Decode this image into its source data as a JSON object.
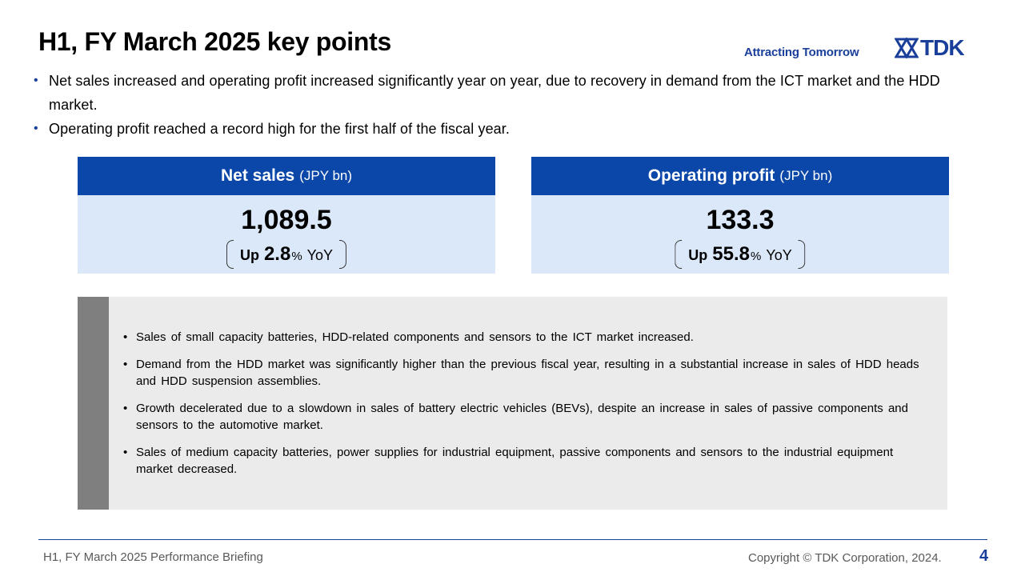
{
  "header": {
    "title": "H1, FY March 2025 key points",
    "tagline": "Attracting Tomorrow",
    "logo_text": "TDK"
  },
  "bullets": [
    "Net sales increased and operating profit increased significantly year on year, due to recovery in demand from the ICT market and the HDD market.",
    "Operating profit reached a record high for the first half of the fiscal year."
  ],
  "kpis": [
    {
      "label": "Net sales",
      "unit": "(JPY bn)",
      "value": "1,089.5",
      "up_label": "Up",
      "change": "2.8",
      "pct": "%",
      "yoy": "YoY"
    },
    {
      "label": "Operating profit",
      "unit": "(JPY bn)",
      "value": "133.3",
      "up_label": "Up",
      "change": "55.8",
      "pct": "%",
      "yoy": "YoY"
    }
  ],
  "details": [
    "Sales of small capacity batteries, HDD-related components and sensors to the ICT market increased.",
    "Demand from the HDD market was significantly higher than the previous fiscal year, resulting in a substantial increase in sales of HDD heads and HDD suspension assemblies.",
    "Growth decelerated due to a slowdown in sales of battery electric vehicles (BEVs), despite an increase in sales of passive components and sensors to the automotive market.",
    "Sales of medium capacity batteries, power supplies for industrial equipment, passive components and sensors to the industrial equipment market decreased."
  ],
  "footer": {
    "left": "H1, FY March 2025 Performance Briefing",
    "copyright": "Copyright © TDK Corporation, 2024.",
    "page": "4"
  },
  "colors": {
    "brand_blue": "#0a47a9",
    "logo_blue": "#1a3f9b",
    "kpi_bg": "#dbe8f9",
    "detail_bg": "#ebebeb",
    "detail_bar": "#7f7f7f"
  }
}
